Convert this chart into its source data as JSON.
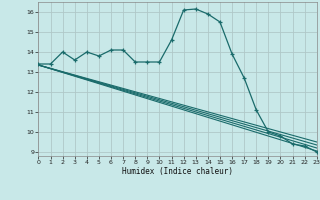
{
  "xlabel": "Humidex (Indice chaleur)",
  "bg_color": "#c8e8e8",
  "grid_color": "#b0c8c8",
  "line_color": "#1a6b6b",
  "xlim": [
    0,
    23
  ],
  "ylim": [
    8.8,
    16.5
  ],
  "xticks": [
    0,
    1,
    2,
    3,
    4,
    5,
    6,
    7,
    8,
    9,
    10,
    11,
    12,
    13,
    14,
    15,
    16,
    17,
    18,
    19,
    20,
    21,
    22,
    23
  ],
  "yticks": [
    9,
    10,
    11,
    12,
    13,
    14,
    15,
    16
  ],
  "line1_x": [
    0,
    1,
    2,
    3,
    4,
    5,
    6,
    7,
    8,
    9,
    10,
    11,
    12,
    13,
    14,
    15,
    16,
    17,
    18,
    19,
    20,
    21,
    22,
    23
  ],
  "line1_y": [
    13.4,
    13.4,
    14.0,
    13.6,
    14.0,
    13.8,
    14.1,
    14.1,
    13.5,
    13.5,
    13.5,
    14.6,
    16.1,
    16.15,
    15.9,
    15.5,
    13.9,
    12.7,
    11.1,
    10.0,
    9.8,
    9.4,
    9.3,
    9.0
  ],
  "line2_x": [
    0,
    23
  ],
  "line2_y": [
    13.35,
    9.05
  ],
  "line3_x": [
    0,
    23
  ],
  "line3_y": [
    13.35,
    9.2
  ],
  "line4_x": [
    0,
    23
  ],
  "line4_y": [
    13.35,
    9.35
  ],
  "line5_x": [
    0,
    23
  ],
  "line5_y": [
    13.35,
    9.5
  ]
}
